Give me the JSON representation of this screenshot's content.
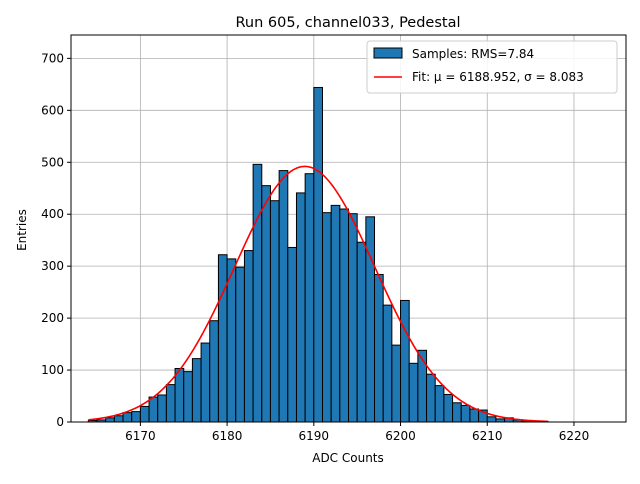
{
  "chart_data": {
    "type": "bar",
    "title": "Run 605, channel033, Pedestal",
    "xlabel": "ADC Counts",
    "ylabel": "Entries",
    "xlim": [
      6162,
      6226
    ],
    "ylim": [
      0,
      745
    ],
    "xticks": [
      6170,
      6180,
      6190,
      6200,
      6210,
      6220
    ],
    "yticks": [
      0,
      100,
      200,
      300,
      400,
      500,
      600,
      700
    ],
    "grid": true,
    "legend_position": "top-right",
    "bins": {
      "edges": [
        6164,
        6165,
        6166,
        6167,
        6168,
        6169,
        6170,
        6171,
        6172,
        6173,
        6174,
        6175,
        6176,
        6177,
        6178,
        6179,
        6180,
        6181,
        6182,
        6183,
        6184,
        6185,
        6186,
        6187,
        6188,
        6189,
        6190,
        6191,
        6192,
        6193,
        6194,
        6195,
        6196,
        6197,
        6198,
        6199,
        6200,
        6201,
        6202,
        6203,
        6204,
        6205,
        6206,
        6207,
        6208,
        6209,
        6210,
        6211,
        6212,
        6213,
        6214,
        6215,
        6216,
        6217,
        6218
      ],
      "values": [
        3,
        4,
        8,
        12,
        18,
        20,
        30,
        48,
        52,
        72,
        103,
        97,
        122,
        152,
        195,
        322,
        314,
        298,
        330,
        496,
        455,
        426,
        484,
        336,
        441,
        478,
        644,
        403,
        417,
        410,
        401,
        346,
        395,
        284,
        225,
        148,
        234,
        113,
        138,
        92,
        70,
        53,
        37,
        32,
        25,
        23,
        10,
        6,
        8,
        4,
        2,
        1,
        1,
        0
      ]
    },
    "fit_curve": {
      "mu": 6188.952,
      "sigma": 8.083,
      "amplitude": 492,
      "x_range": [
        6164,
        6217
      ]
    },
    "series": [
      {
        "name": "Samples: RMS=7.84",
        "kind": "histogram",
        "color": "#1f77b4",
        "edgecolor": "#000000"
      },
      {
        "name": "Fit: μ = 6188.952, σ = 8.083",
        "kind": "line",
        "color": "#ff0000"
      }
    ]
  }
}
